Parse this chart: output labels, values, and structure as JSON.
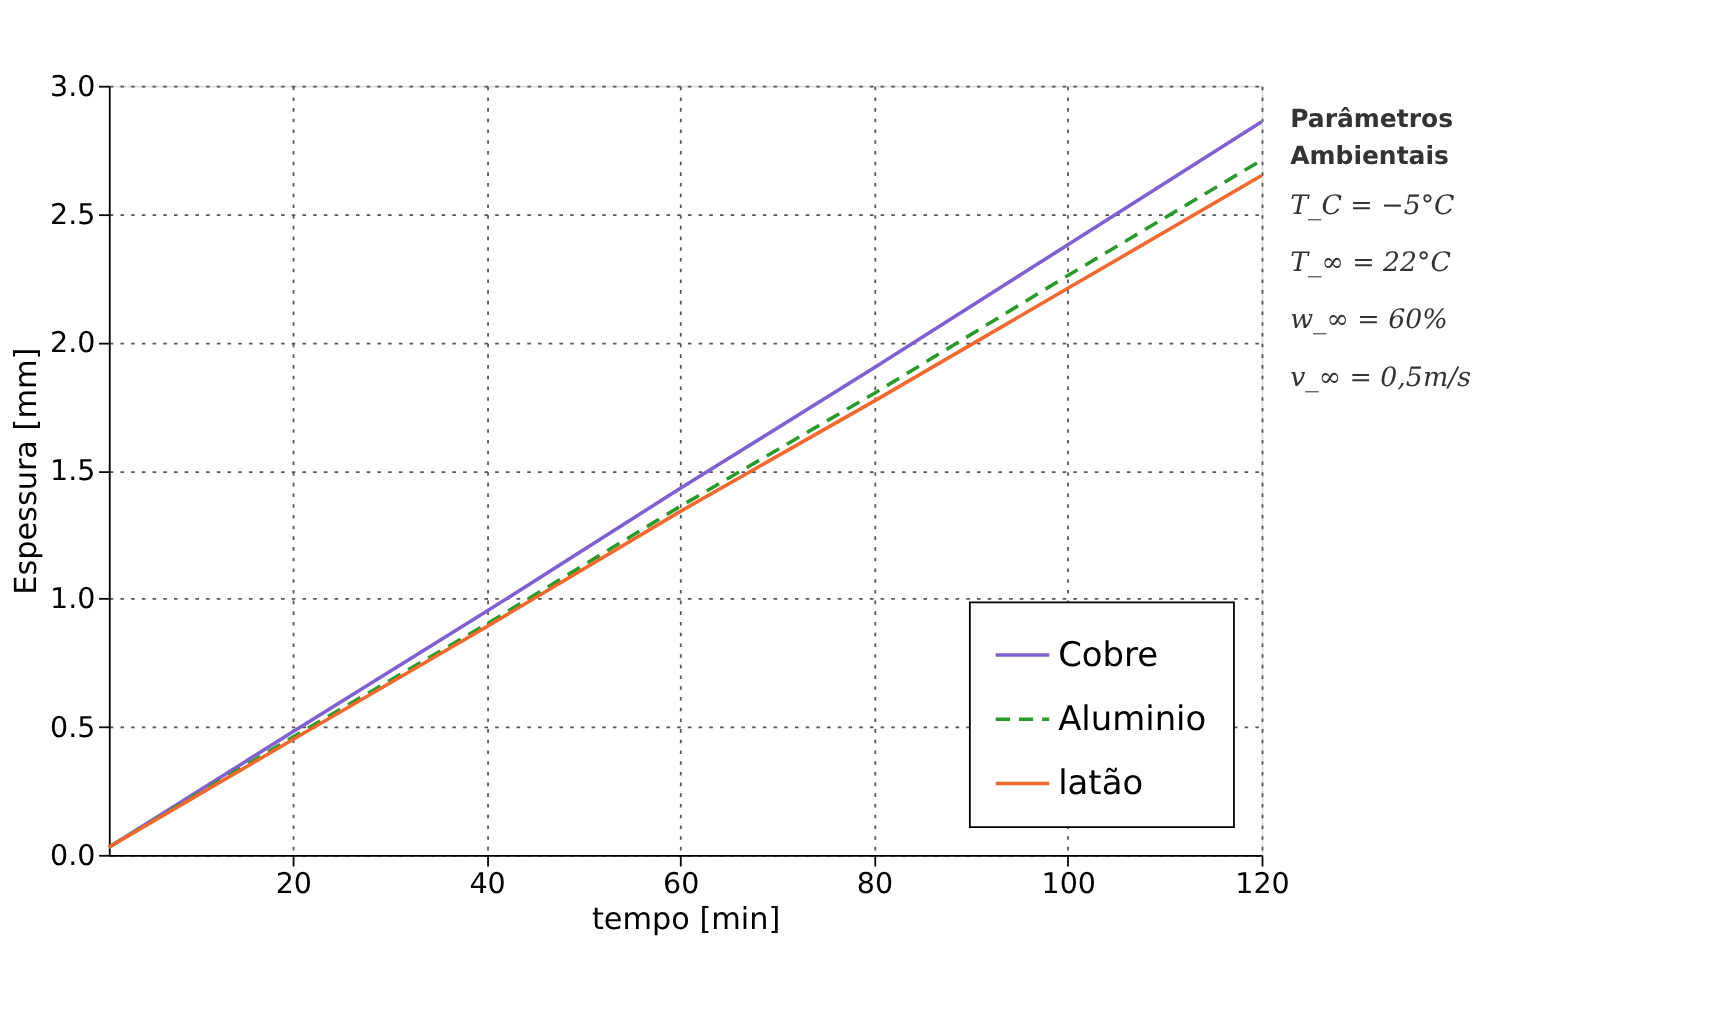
{
  "chart_data": {
    "type": "line",
    "xlabel": "tempo [min]",
    "ylabel": "Espessura [mm]",
    "x": [
      1,
      20,
      40,
      60,
      80,
      100,
      120
    ],
    "series": [
      {
        "name": "Cobre",
        "color": "#8060d0",
        "line_style": "solid",
        "values": [
          0.03,
          0.48,
          0.95,
          1.43,
          1.9,
          2.38,
          2.86
        ]
      },
      {
        "name": "Aluminio",
        "color": "#2a9a2a",
        "line_style": "dashed",
        "values": [
          0.03,
          0.46,
          0.9,
          1.36,
          1.8,
          2.26,
          2.71
        ]
      },
      {
        "name": "latão",
        "color": "#f06a30",
        "line_style": "solid",
        "values": [
          0.03,
          0.45,
          0.89,
          1.34,
          1.77,
          2.21,
          2.65
        ]
      }
    ],
    "xlim": [
      1,
      120
    ],
    "xticks": [
      20,
      40,
      60,
      80,
      100,
      120
    ],
    "ylim": [
      0,
      3
    ],
    "yticks": [
      {
        "value": 0,
        "label": "0.0"
      },
      {
        "value": 0.5,
        "label": "0.5"
      },
      {
        "value": 1,
        "label": "1.0"
      },
      {
        "value": 1.5,
        "label": "1.5"
      },
      {
        "value": 2,
        "label": "2.0"
      },
      {
        "value": 2.5,
        "label": "2.5"
      },
      {
        "value": 3,
        "label": "3.0"
      }
    ],
    "grid": true,
    "legend": "bottom right",
    "marker": "none",
    "annotations": [
      "Parâmetros Ambientais",
      "T_C = −5°C",
      "T_∞ = 22°C",
      "w_∞ = 60%",
      "v_∞ = 0,5m/s"
    ]
  }
}
